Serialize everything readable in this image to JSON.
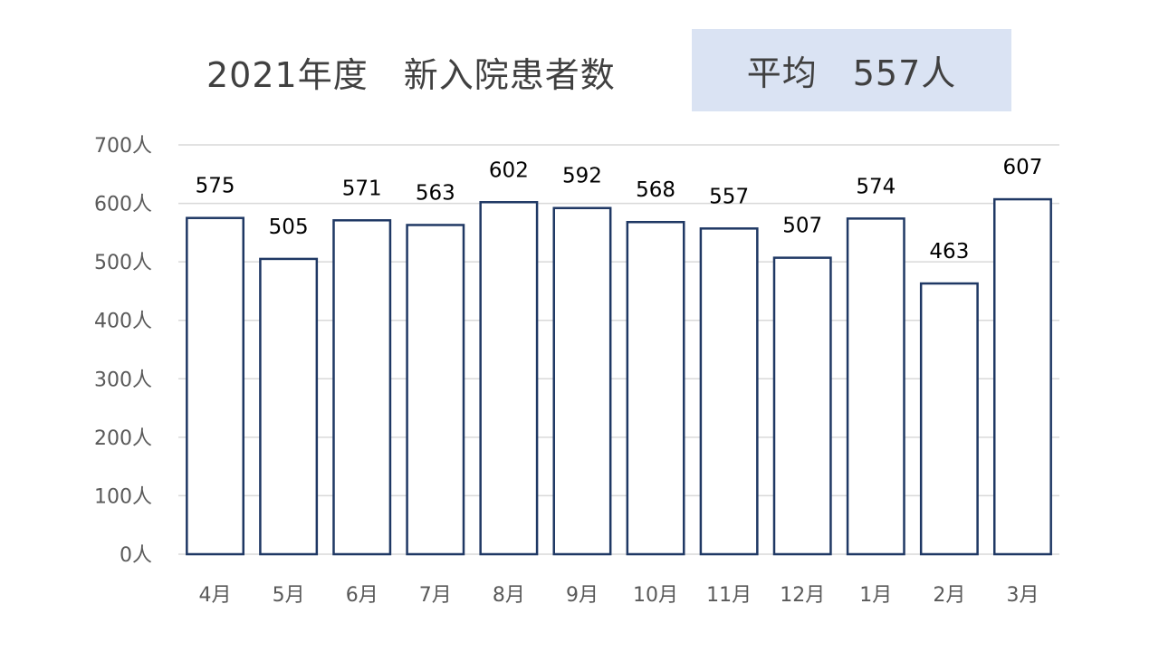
{
  "chart_data": {
    "type": "bar",
    "title": "2021年度　新入院患者数",
    "average_label": "平均　557人",
    "categories": [
      "4月",
      "5月",
      "6月",
      "7月",
      "8月",
      "9月",
      "10月",
      "11月",
      "12月",
      "1月",
      "2月",
      "3月"
    ],
    "values": [
      575,
      505,
      571,
      563,
      602,
      592,
      568,
      557,
      507,
      574,
      463,
      607
    ],
    "data_labels": [
      "575",
      "505",
      "571",
      "563",
      "602",
      "592",
      "568",
      "557",
      "507",
      "574",
      "463",
      "607"
    ],
    "ylim": [
      0,
      700
    ],
    "yticks": [
      0,
      100,
      200,
      300,
      400,
      500,
      600,
      700
    ],
    "ytick_labels": [
      "0人",
      "100人",
      "200人",
      "300人",
      "400人",
      "500人",
      "600人",
      "700人"
    ],
    "xlabel": "",
    "ylabel": "",
    "grid": true,
    "legend": "none",
    "colors": {
      "bar_fill": "#ffffff",
      "bar_stroke": "#1f3864",
      "grid": "#d9d9d9",
      "avg_box": "#dae3f3"
    }
  }
}
